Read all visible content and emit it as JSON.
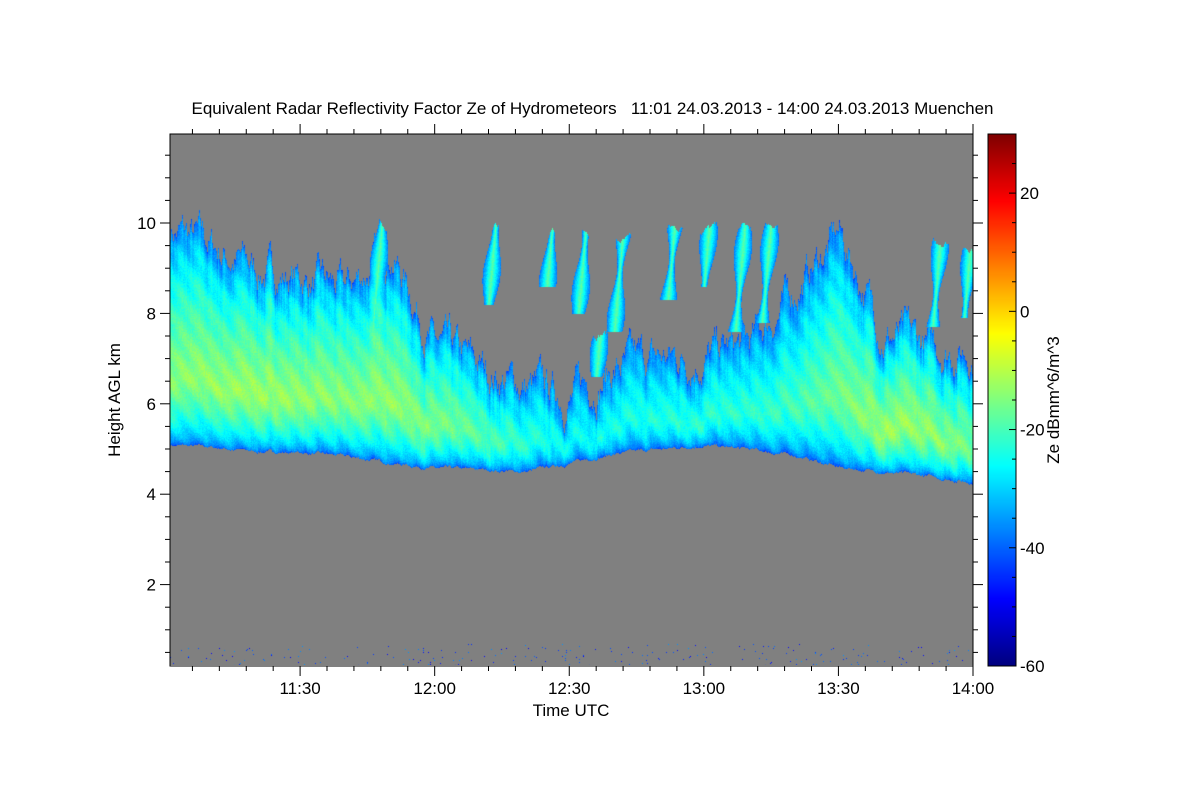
{
  "chart_data": {
    "type": "heatmap",
    "title": "Equivalent Radar Reflectivity Factor Ze of Hydrometeors   11:01 24.03.2013 - 14:00 24.03.2013 Muenchen",
    "xlabel": "Time UTC",
    "ylabel": "Height AGL km",
    "colorbar_label": "Ze dBmm^6/m^3",
    "xlim_minutes_after_11": [
      61,
      240
    ],
    "ylim_km": [
      0.2,
      12
    ],
    "xticks": [
      {
        "value": 90,
        "label": "11:30"
      },
      {
        "value": 120,
        "label": "12:00"
      },
      {
        "value": 150,
        "label": "12:30"
      },
      {
        "value": 180,
        "label": "13:00"
      },
      {
        "value": 210,
        "label": "13:30"
      },
      {
        "value": 240,
        "label": "14:00"
      }
    ],
    "yticks": [
      {
        "value": 2,
        "label": "2"
      },
      {
        "value": 4,
        "label": "4"
      },
      {
        "value": 6,
        "label": "6"
      },
      {
        "value": 8,
        "label": "8"
      },
      {
        "value": 10,
        "label": "10"
      }
    ],
    "colorbar_range": [
      -60,
      30
    ],
    "colorbar_ticks": [
      {
        "value": -60,
        "label": "-60"
      },
      {
        "value": -40,
        "label": "-40"
      },
      {
        "value": -20,
        "label": "-20"
      },
      {
        "value": 0,
        "label": "0"
      },
      {
        "value": 20,
        "label": "20"
      }
    ],
    "colormap": "jet",
    "missing_color": "#808080",
    "cloud_layer": {
      "time_min": [
        61,
        70,
        80,
        90,
        100,
        110,
        120,
        130,
        140,
        150,
        160,
        170,
        180,
        190,
        200,
        210,
        220,
        230,
        240
      ],
      "base_km": [
        5.1,
        5.05,
        4.95,
        4.93,
        4.85,
        4.7,
        4.58,
        4.55,
        4.5,
        4.7,
        4.9,
        5.0,
        5.09,
        5.0,
        4.87,
        4.6,
        4.5,
        4.4,
        4.27
      ],
      "top_km": [
        9.9,
        9.5,
        9.0,
        8.8,
        8.5,
        9.5,
        7.3,
        6.8,
        6.4,
        6.2,
        6.8,
        7.0,
        7.1,
        7.3,
        8.5,
        9.8,
        7.6,
        7.3,
        7.2
      ],
      "peak_dbz": [
        -14,
        -13,
        -12,
        -13,
        -14,
        -13,
        -15,
        -18,
        -22,
        -25,
        -24,
        -23,
        -22,
        -22,
        -20,
        -16,
        -12,
        -13,
        -16
      ]
    },
    "fallstreaks": [
      {
        "time_min": 106,
        "base_km": 7.5,
        "top_km": 10.0
      },
      {
        "time_min": 132,
        "base_km": 8.2,
        "top_km": 10.0
      },
      {
        "time_min": 145,
        "base_km": 8.6,
        "top_km": 9.8
      },
      {
        "time_min": 152,
        "base_km": 8.0,
        "top_km": 9.8
      },
      {
        "time_min": 160,
        "base_km": 7.6,
        "top_km": 9.6
      },
      {
        "time_min": 156,
        "base_km": 6.6,
        "top_km": 7.6
      },
      {
        "time_min": 172,
        "base_km": 8.3,
        "top_km": 9.9
      },
      {
        "time_min": 180,
        "base_km": 8.6,
        "top_km": 9.9
      },
      {
        "time_min": 187,
        "base_km": 7.6,
        "top_km": 9.9
      },
      {
        "time_min": 193,
        "base_km": 7.8,
        "top_km": 10.0
      },
      {
        "time_min": 231,
        "base_km": 7.7,
        "top_km": 9.6
      },
      {
        "time_min": 238,
        "base_km": 7.9,
        "top_km": 9.5
      }
    ]
  }
}
